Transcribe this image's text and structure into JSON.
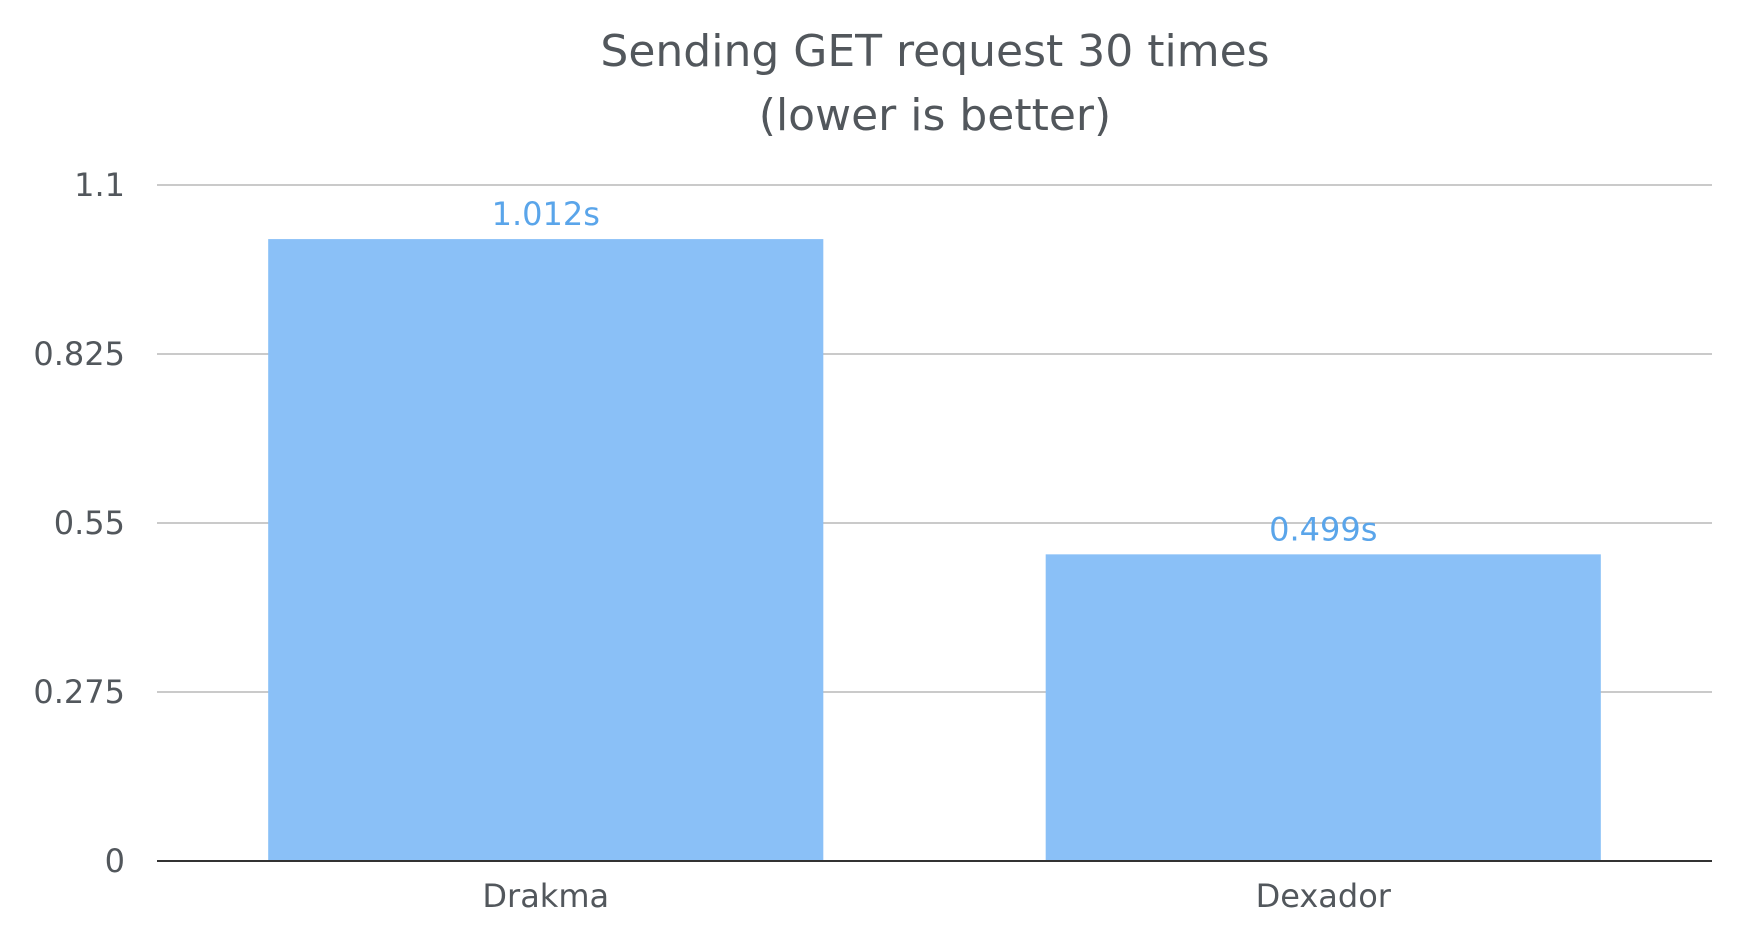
{
  "chart_data": {
    "type": "bar",
    "title": [
      "Sending GET request 30 times",
      "(lower is better)"
    ],
    "categories": [
      "Drakma",
      "Dexador"
    ],
    "values": [
      1.012,
      0.499
    ],
    "data_labels": [
      "1.012s",
      "0.499s"
    ],
    "yticks": [
      "0",
      "0.275",
      "0.55",
      "0.825",
      "1.1"
    ],
    "ylim": [
      0,
      1.1
    ],
    "grid": true,
    "legend": "none",
    "xlabel": "",
    "ylabel": ""
  },
  "colors": {
    "bar": "#8ac0f7",
    "data_label": "#5aa5ea",
    "text": "#52575c"
  }
}
